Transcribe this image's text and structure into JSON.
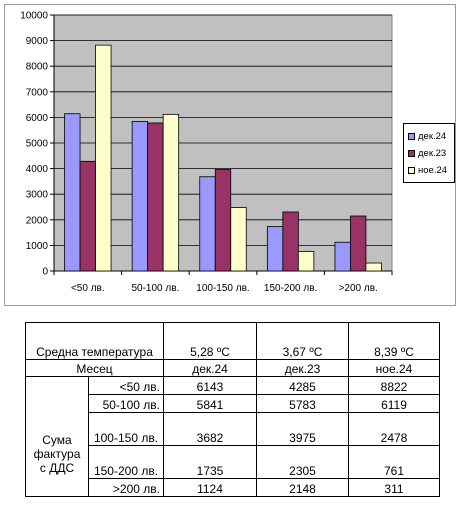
{
  "chart_data": {
    "type": "bar",
    "categories": [
      "<50 лв.",
      "50-100 лв.",
      "100-150 лв.",
      "150-200 лв.",
      ">200 лв."
    ],
    "series": [
      {
        "name": "дек.24",
        "color": "#9999ff",
        "values": [
          6143,
          5841,
          3682,
          1735,
          1124
        ]
      },
      {
        "name": "дек.23",
        "color": "#993366",
        "values": [
          4285,
          5783,
          3975,
          2305,
          2148
        ]
      },
      {
        "name": "ное.24",
        "color": "#ffffcc",
        "values": [
          8822,
          6119,
          2478,
          761,
          311
        ]
      }
    ],
    "yticks": [
      "0",
      "1000",
      "2000",
      "3000",
      "4000",
      "5000",
      "6000",
      "7000",
      "8000",
      "9000",
      "10000"
    ],
    "ylim": [
      0,
      10000
    ],
    "grid": true,
    "plot_background": "#c0c0c0",
    "legend_position": "right"
  },
  "table": {
    "header_label": "Средна температура",
    "temperatures": [
      "5,28 ºC",
      "3,67 ºC",
      "8,39 ºC"
    ],
    "month_label": "Месец",
    "months": [
      "дек.24",
      "дек.23",
      "ное.24"
    ],
    "group_label": "Сума фактура с ДДС",
    "rows": [
      {
        "label": "<50 лв.",
        "values": [
          "6143",
          "4285",
          "8822"
        ]
      },
      {
        "label": "50-100 лв.",
        "values": [
          "5841",
          "5783",
          "6119"
        ]
      },
      {
        "label": "100-150 лв.",
        "values": [
          "3682",
          "3975",
          "2478"
        ]
      },
      {
        "label": "150-200 лв.",
        "values": [
          "1735",
          "2305",
          "761"
        ]
      },
      {
        "label": ">200 лв.",
        "values": [
          "1124",
          "2148",
          "311"
        ]
      }
    ]
  }
}
